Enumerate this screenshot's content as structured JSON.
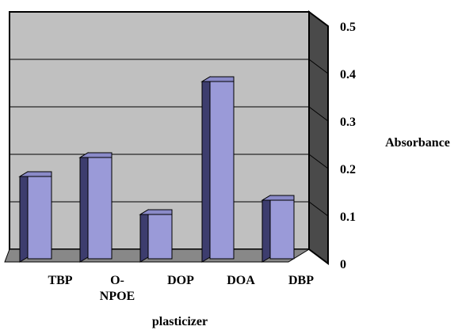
{
  "chart_data": {
    "type": "bar",
    "style": "3d-column",
    "categories": [
      [
        "TBP"
      ],
      [
        "O-",
        "NPOE"
      ],
      [
        "DOP"
      ],
      [
        "DOA"
      ],
      [
        "DBP"
      ]
    ],
    "series": [
      {
        "values": [
          0.18,
          0.22,
          0.1,
          0.38,
          0.13
        ]
      }
    ],
    "xlabel": "plasticizer",
    "ylabel": "Absorbance",
    "ylim": [
      0,
      0.5
    ],
    "yticks": [
      "0",
      "0.1",
      "0.2",
      "0.3",
      "0.4",
      "0.5"
    ],
    "y_axis_side": "right",
    "grid": true,
    "legend": "none",
    "colors": {
      "bar_front": "#9a9ad8",
      "bar_side": "#3d3d6e",
      "bar_top": "#8a8ac8",
      "plot_back": "#c0c0c0",
      "plot_wall": "#4a4a4a",
      "plot_floor": "#888888",
      "gridline": "#000000"
    }
  }
}
